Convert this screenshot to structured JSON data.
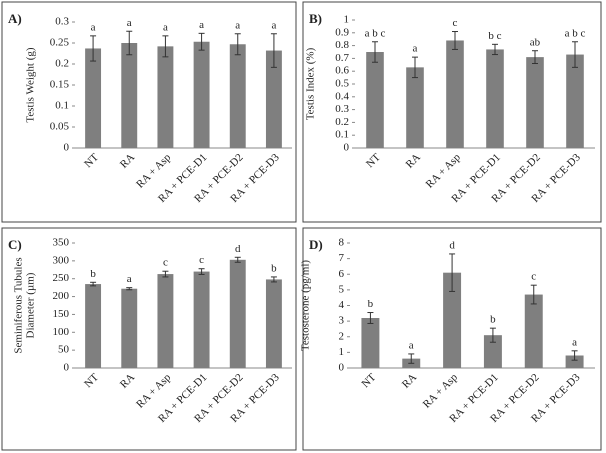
{
  "chart_data": [
    {
      "type": "bar",
      "panel_label": "A)",
      "ylabel": [
        "Testis Weight (g)"
      ],
      "color": "#7f7f7f",
      "categories": [
        "NT",
        "RA",
        "RA + Asp",
        "RA + PCE-D1",
        "RA + PCE-D2",
        "RA + PCE-D3"
      ],
      "values": [
        0.237,
        0.25,
        0.242,
        0.253,
        0.247,
        0.232
      ],
      "errors": [
        0.03,
        0.028,
        0.025,
        0.02,
        0.025,
        0.04
      ],
      "annotations": [
        "a",
        "a",
        "a",
        "a",
        "a",
        "a"
      ],
      "ylim": [
        0,
        0.3
      ],
      "yticks": [
        0,
        0.05,
        0.1,
        0.15,
        0.2,
        0.25,
        0.3
      ]
    },
    {
      "type": "bar",
      "panel_label": "B)",
      "ylabel": [
        "Testis Index (%)"
      ],
      "color": "#7f7f7f",
      "categories": [
        "NT",
        "RA",
        "RA + Asp",
        "RA + PCE-D1",
        "RA + PCE-D2",
        "RA + PCE-D3"
      ],
      "values": [
        0.75,
        0.63,
        0.84,
        0.77,
        0.71,
        0.73
      ],
      "errors": [
        0.08,
        0.08,
        0.07,
        0.04,
        0.05,
        0.1
      ],
      "annotations": [
        "a b c",
        "a",
        "c",
        "b c",
        "ab",
        "a b c"
      ],
      "ylim": [
        0,
        1
      ],
      "yticks": [
        0,
        0.1,
        0.2,
        0.3,
        0.4,
        0.5,
        0.6,
        0.7,
        0.8,
        0.9,
        1
      ]
    },
    {
      "type": "bar",
      "panel_label": "C)",
      "ylabel": [
        "Seminiferous Tubules",
        "Diameter (µm)"
      ],
      "color": "#7f7f7f",
      "categories": [
        "NT",
        "RA",
        "RA + Asp",
        "RA + PCE-D1",
        "RA + PCE-D2",
        "RA + PCE-D3"
      ],
      "values": [
        235,
        222,
        263,
        270,
        303,
        248
      ],
      "errors": [
        5,
        3,
        8,
        8,
        7,
        7
      ],
      "annotations": [
        "b",
        "a",
        "c",
        "c",
        "d",
        "b"
      ],
      "ylim": [
        0,
        350
      ],
      "yticks": [
        0,
        50,
        100,
        150,
        200,
        250,
        300,
        350
      ]
    },
    {
      "type": "bar",
      "panel_label": "D)",
      "ylabel": [
        "Testosterone (pg/ml)"
      ],
      "color": "#7f7f7f",
      "categories": [
        "NT",
        "RA",
        "RA + Asp",
        "RA + PCE-D1",
        "RA + PCE-D2",
        "RA + PCE-D3"
      ],
      "values": [
        3.2,
        0.6,
        6.1,
        2.1,
        4.7,
        0.8
      ],
      "errors": [
        0.35,
        0.3,
        1.2,
        0.45,
        0.6,
        0.3
      ],
      "annotations": [
        "b",
        "a",
        "d",
        "b",
        "c",
        "a"
      ],
      "ylim": [
        0,
        8
      ],
      "yticks": [
        0,
        1,
        2,
        3,
        4,
        5,
        6,
        7,
        8
      ]
    }
  ]
}
